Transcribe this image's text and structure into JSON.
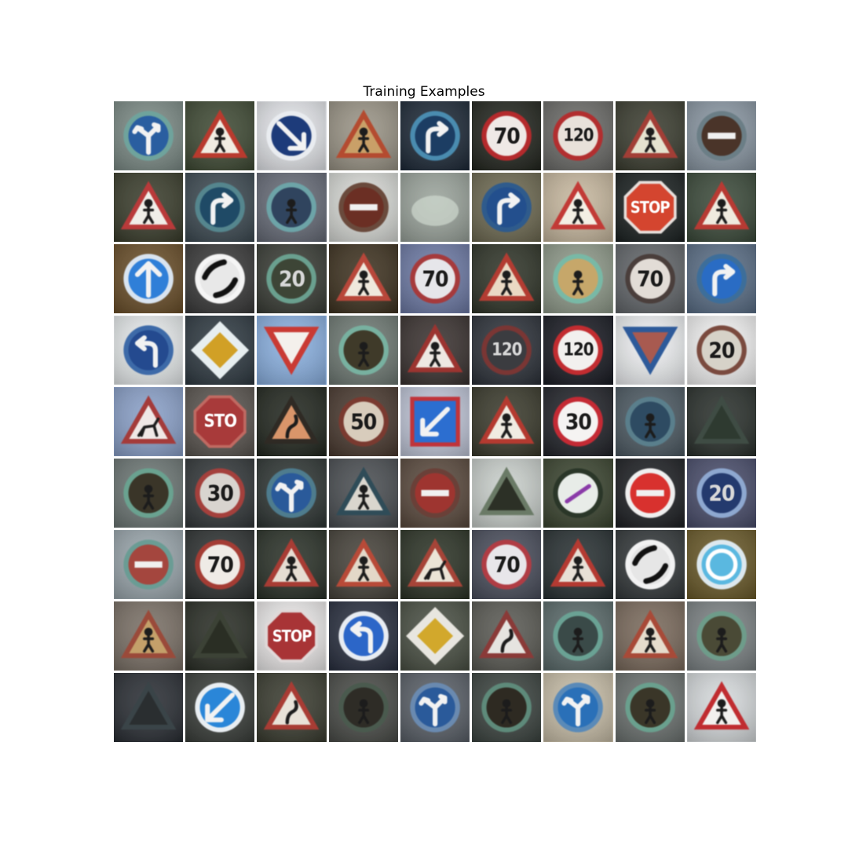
{
  "title": "Training Examples",
  "grid": {
    "rows": 9,
    "cols": 9
  },
  "tiles": [
    {
      "bg": "#7c8b86",
      "shape": "circle",
      "color": "#2a5ea0",
      "ring": "#6fa39c",
      "icon": "arrow-lr",
      "text": ""
    },
    {
      "bg": "#3f4a34",
      "shape": "triangle",
      "color": "#f1ece2",
      "ring": "#b93a2e",
      "icon": "person",
      "text": ""
    },
    {
      "bg": "#e4e6ea",
      "shape": "circle",
      "color": "#1d3b7a",
      "ring": "#e9ecf0",
      "icon": "arrow-dr",
      "text": ""
    },
    {
      "bg": "#9a9486",
      "shape": "triangle",
      "color": "#c9a068",
      "ring": "#b44b30",
      "icon": "person",
      "text": ""
    },
    {
      "bg": "#1e2a38",
      "shape": "circle",
      "color": "#1c3d63",
      "ring": "#4a8cb0",
      "icon": "arrow-turn",
      "text": ""
    },
    {
      "bg": "#23261f",
      "shape": "circle",
      "color": "#efe9e6",
      "ring": "#b42a2c",
      "icon": "",
      "text": "70"
    },
    {
      "bg": "#6b6b68",
      "shape": "circle",
      "color": "#e8e1da",
      "ring": "#b22e2f",
      "icon": "",
      "text": "120"
    },
    {
      "bg": "#3b3d30",
      "shape": "triangle",
      "color": "#e5e2cf",
      "ring": "#a23e36",
      "icon": "person",
      "text": ""
    },
    {
      "bg": "#8a97a3",
      "shape": "circle",
      "color": "#4a3429",
      "ring": "#6b7e86",
      "icon": "bar",
      "text": ""
    },
    {
      "bg": "#3a3d2c",
      "shape": "triangle",
      "color": "#f0eee8",
      "ring": "#b93a3a",
      "icon": "person",
      "text": ""
    },
    {
      "bg": "#3d4a52",
      "shape": "circle",
      "color": "#1f4a66",
      "ring": "#55868e",
      "icon": "arrow-turn",
      "text": ""
    },
    {
      "bg": "#676c78",
      "shape": "circle",
      "color": "#30445e",
      "ring": "#6da4a8",
      "icon": "person",
      "text": ""
    },
    {
      "bg": "#d8dad6",
      "shape": "circle",
      "color": "#6b2f24",
      "ring": "#6a4a3c",
      "icon": "bar",
      "text": ""
    },
    {
      "bg": "#9aa39b",
      "shape": "none",
      "color": "#cfd8cf",
      "ring": "#7f8f86",
      "icon": "",
      "text": ""
    },
    {
      "bg": "#6e6a52",
      "shape": "circle",
      "color": "#234f8d",
      "ring": "#2f5b8c",
      "icon": "arrow-turn",
      "text": ""
    },
    {
      "bg": "#c7b89f",
      "shape": "triangle",
      "color": "#f3efe4",
      "ring": "#c23a36",
      "icon": "person",
      "text": ""
    },
    {
      "bg": "#1c2222",
      "shape": "octagon",
      "color": "#d4452f",
      "ring": "#e8e0dc",
      "icon": "",
      "text": "STOP"
    },
    {
      "bg": "#3b4a3a",
      "shape": "triangle",
      "color": "#efeade",
      "ring": "#b73a33",
      "icon": "person",
      "text": ""
    },
    {
      "bg": "#6a4f2a",
      "shape": "circle",
      "color": "#2f7fd8",
      "ring": "#d9e4f0",
      "icon": "arrow-up",
      "text": ""
    },
    {
      "bg": "#3a3a3a",
      "shape": "circle",
      "color": "#e8e8e8",
      "ring": "#f5f5f5",
      "icon": "end-bars",
      "text": ""
    },
    {
      "bg": "#3a3d36",
      "shape": "circle",
      "color": "#3d4536",
      "ring": "#6aa08f",
      "icon": "",
      "text": "20"
    },
    {
      "bg": "#3e3220",
      "shape": "triangle",
      "color": "#efe8dc",
      "ring": "#b8473a",
      "icon": "person",
      "text": ""
    },
    {
      "bg": "#6d7aa5",
      "shape": "circle",
      "color": "#e6e6ea",
      "ring": "#a63a3c",
      "icon": "",
      "text": "70"
    },
    {
      "bg": "#2f3428",
      "shape": "triangle",
      "color": "#ead9c4",
      "ring": "#b33c32",
      "icon": "person",
      "text": ""
    },
    {
      "bg": "#8f9a8a",
      "shape": "circle",
      "color": "#c6a76a",
      "ring": "#78b9a6",
      "icon": "person",
      "text": ""
    },
    {
      "bg": "#62666a",
      "shape": "circle",
      "color": "#e2dcd6",
      "ring": "#4a3e3b",
      "icon": "",
      "text": "70"
    },
    {
      "bg": "#5a6e86",
      "shape": "circle",
      "color": "#2a6cc4",
      "ring": "#3d6e9a",
      "icon": "arrow-turn",
      "text": ""
    },
    {
      "bg": "#e8eced",
      "shape": "circle",
      "color": "#244a8f",
      "ring": "#3d6aa8",
      "icon": "arrow-left-turn",
      "text": ""
    },
    {
      "bg": "#2f3a42",
      "shape": "diamond",
      "color": "#d1a026",
      "ring": "#e7eef0",
      "icon": "",
      "text": ""
    },
    {
      "bg": "#8ab0e0",
      "shape": "invtriangle",
      "color": "#f4f0ec",
      "ring": "#c93a34",
      "icon": "",
      "text": ""
    },
    {
      "bg": "#6f7a74",
      "shape": "circle",
      "color": "#3f3a29",
      "ring": "#78b1a0",
      "icon": "person",
      "text": ""
    },
    {
      "bg": "#3a3230",
      "shape": "triangle",
      "color": "#eee8e2",
      "ring": "#9c3430",
      "icon": "person",
      "text": ""
    },
    {
      "bg": "#2d323a",
      "shape": "circle",
      "color": "#3b3c40",
      "ring": "#7a3634",
      "icon": "",
      "text": "120"
    },
    {
      "bg": "#1a1c24",
      "shape": "circle",
      "color": "#f2f0ee",
      "ring": "#c22c30",
      "icon": "",
      "text": "120"
    },
    {
      "bg": "#eef0f2",
      "shape": "invtriangle",
      "color": "#a85a50",
      "ring": "#2d5a9a",
      "icon": "",
      "text": ""
    },
    {
      "bg": "#f2f2f2",
      "shape": "circle",
      "color": "#d6d2c8",
      "ring": "#7a4a3e",
      "icon": "",
      "text": "20"
    },
    {
      "bg": "#8aa0c8",
      "shape": "triangle",
      "color": "#efe8e6",
      "ring": "#a43b3a",
      "icon": "deer",
      "text": ""
    },
    {
      "bg": "#5a5550",
      "shape": "octagon",
      "color": "#a83a3a",
      "ring": "#c06a62",
      "icon": "",
      "text": "STO"
    },
    {
      "bg": "#22271f",
      "shape": "triangle",
      "color": "#d9956a",
      "ring": "#2f2a24",
      "icon": "curve",
      "text": ""
    },
    {
      "bg": "#4a3a30",
      "shape": "circle",
      "color": "#d8ccbc",
      "ring": "#7a3a30",
      "icon": "",
      "text": "50"
    },
    {
      "bg": "#c0c6d8",
      "shape": "square",
      "color": "#2c6ed0",
      "ring": "#c0343a",
      "icon": "arrow-dl",
      "text": ""
    },
    {
      "bg": "#3a3a2c",
      "shape": "triangle",
      "color": "#f0ece2",
      "ring": "#b43a30",
      "icon": "person",
      "text": ""
    },
    {
      "bg": "#22242a",
      "shape": "circle",
      "color": "#f5f3f2",
      "ring": "#c42a34",
      "icon": "",
      "text": "30"
    },
    {
      "bg": "#4d5a63",
      "shape": "circle",
      "color": "#2e4b62",
      "ring": "#5a7f8c",
      "icon": "person",
      "text": ""
    },
    {
      "bg": "#2a302c",
      "shape": "triangle",
      "color": "#2e3a30",
      "ring": "#3f4c44",
      "icon": "",
      "text": ""
    },
    {
      "bg": "#6d7775",
      "shape": "circle",
      "color": "#3a3528",
      "ring": "#6aa290",
      "icon": "person",
      "text": ""
    },
    {
      "bg": "#33383a",
      "shape": "circle",
      "color": "#d8d4cf",
      "ring": "#a4403c",
      "icon": "",
      "text": "30"
    },
    {
      "bg": "#2f3634",
      "shape": "circle",
      "color": "#2a5a9a",
      "ring": "#4e7c8e",
      "icon": "arrow-lr",
      "text": ""
    },
    {
      "bg": "#4a4e52",
      "shape": "triangle",
      "color": "#dad6ce",
      "ring": "#2f4c58",
      "icon": "person",
      "text": ""
    },
    {
      "bg": "#5a4a3e",
      "shape": "circle",
      "color": "#9e3530",
      "ring": "#6a4038",
      "icon": "bar",
      "text": ""
    },
    {
      "bg": "#c9cfcb",
      "shape": "triangle",
      "color": "#2c3026",
      "ring": "#6a7a66",
      "icon": "",
      "text": ""
    },
    {
      "bg": "#3b4530",
      "shape": "circle",
      "color": "#e8ece8",
      "ring": "#2a3628",
      "icon": "slash",
      "text": ""
    },
    {
      "bg": "#1e2024",
      "shape": "circle",
      "color": "#d8312e",
      "ring": "#efefef",
      "icon": "bar",
      "text": ""
    },
    {
      "bg": "#4a4e6c",
      "shape": "circle",
      "color": "#243a6e",
      "ring": "#8ea8d0",
      "icon": "",
      "text": "20"
    },
    {
      "bg": "#9aa6ac",
      "shape": "circle",
      "color": "#a4463e",
      "ring": "#6a9c94",
      "icon": "bar",
      "text": ""
    },
    {
      "bg": "#2e3232",
      "shape": "circle",
      "color": "#efebe6",
      "ring": "#a43c34",
      "icon": "",
      "text": "70"
    },
    {
      "bg": "#2a3128",
      "shape": "triangle",
      "color": "#e6ddd2",
      "ring": "#a83c34",
      "icon": "person",
      "text": ""
    },
    {
      "bg": "#46423a",
      "shape": "triangle",
      "color": "#e3d8c8",
      "ring": "#b84a38",
      "icon": "person",
      "text": ""
    },
    {
      "bg": "#2c3326",
      "shape": "triangle",
      "color": "#ebe4d6",
      "ring": "#a64438",
      "icon": "deer",
      "text": ""
    },
    {
      "bg": "#4a4e5c",
      "shape": "circle",
      "color": "#e8e6ea",
      "ring": "#b03c44",
      "icon": "",
      "text": "70"
    },
    {
      "bg": "#283032",
      "shape": "triangle",
      "color": "#e8e0d6",
      "ring": "#b43a32",
      "icon": "person",
      "text": ""
    },
    {
      "bg": "#33383a",
      "shape": "circle",
      "color": "#e6e6e6",
      "ring": "#f2f2f2",
      "icon": "end-bars",
      "text": ""
    },
    {
      "bg": "#6a5a2a",
      "shape": "circle",
      "color": "#5ab8e0",
      "ring": "#dde8ee",
      "icon": "roundabout",
      "text": ""
    },
    {
      "bg": "#7a7066",
      "shape": "triangle",
      "color": "#c4a06a",
      "ring": "#9a4a3a",
      "icon": "person",
      "text": ""
    },
    {
      "bg": "#2a2e26",
      "shape": "triangle",
      "color": "#2a2e24",
      "ring": "#3c4236",
      "icon": "",
      "text": ""
    },
    {
      "bg": "#eceaea",
      "shape": "octagon",
      "color": "#a83436",
      "ring": "#e0d8d8",
      "icon": "",
      "text": "STOP"
    },
    {
      "bg": "#2a3040",
      "shape": "circle",
      "color": "#2c66c8",
      "ring": "#e8ecf2",
      "icon": "arrow-left-turn",
      "text": ""
    },
    {
      "bg": "#4a5044",
      "shape": "diamond",
      "color": "#d2a82c",
      "ring": "#e8e6e0",
      "icon": "",
      "text": ""
    },
    {
      "bg": "#5a5a54",
      "shape": "triangle",
      "color": "#e6e4e0",
      "ring": "#8a3a38",
      "icon": "curve",
      "text": ""
    },
    {
      "bg": "#5a6a6a",
      "shape": "circle",
      "color": "#3a4a48",
      "ring": "#6aa294",
      "icon": "person",
      "text": ""
    },
    {
      "bg": "#7a6a5c",
      "shape": "triangle",
      "color": "#e6dccc",
      "ring": "#a84a38",
      "icon": "person",
      "text": ""
    },
    {
      "bg": "#7c8284",
      "shape": "circle",
      "color": "#4a4a36",
      "ring": "#6e9c8a",
      "icon": "person",
      "text": ""
    },
    {
      "bg": "#2a2e34",
      "shape": "triangle",
      "color": "#2a2e30",
      "ring": "#3a4448",
      "icon": "",
      "text": ""
    },
    {
      "bg": "#3a3e3a",
      "shape": "circle",
      "color": "#2a86d8",
      "ring": "#e9eef2",
      "icon": "arrow-dl",
      "text": ""
    },
    {
      "bg": "#3a3c30",
      "shape": "triangle",
      "color": "#e8e2d8",
      "ring": "#a83c34",
      "icon": "curve",
      "text": ""
    },
    {
      "bg": "#4a4c48",
      "shape": "circle",
      "color": "#2e2c26",
      "ring": "#4a5a4e",
      "icon": "person",
      "text": ""
    },
    {
      "bg": "#5a6068",
      "shape": "circle",
      "color": "#2a5a9a",
      "ring": "#6a8ab0",
      "icon": "arrow-lr",
      "text": ""
    },
    {
      "bg": "#3c4440",
      "shape": "circle",
      "color": "#2e2a22",
      "ring": "#5e8a7a",
      "icon": "person",
      "text": ""
    },
    {
      "bg": "#c8bea8",
      "shape": "circle",
      "color": "#2a70b8",
      "ring": "#5a8ab8",
      "icon": "arrow-lr",
      "text": ""
    },
    {
      "bg": "#6c7270",
      "shape": "circle",
      "color": "#3a3628",
      "ring": "#6aa08e",
      "icon": "person",
      "text": ""
    },
    {
      "bg": "#d6dadc",
      "shape": "triangle",
      "color": "#f2f0ee",
      "ring": "#c02c30",
      "icon": "person",
      "text": ""
    }
  ]
}
